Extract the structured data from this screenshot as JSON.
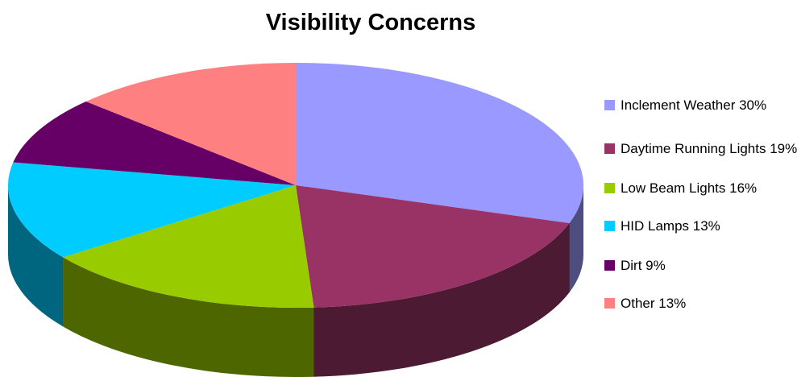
{
  "chart_data": {
    "type": "pie",
    "title": "Visibility Concerns",
    "slices": [
      {
        "label": "Inclement Weather 30%",
        "value": 30,
        "color": "#9999ff",
        "side_color": "#4d4d80"
      },
      {
        "label": "Daytime Running Lights 19%",
        "value": 19,
        "color": "#993366",
        "side_color": "#4d1a33"
      },
      {
        "label": "Low Beam Lights 16%",
        "value": 16,
        "color": "#99cc00",
        "side_color": "#4d6600"
      },
      {
        "label": "HID Lamps 13%",
        "value": 13,
        "color": "#00ccff",
        "side_color": "#006680"
      },
      {
        "label": "Dirt 9%",
        "value": 9,
        "color": "#660066",
        "side_color": "#330033"
      },
      {
        "label": "Other 13%",
        "value": 13,
        "color": "#ff8080",
        "side_color": "#804040"
      }
    ],
    "legend_position": "right"
  }
}
